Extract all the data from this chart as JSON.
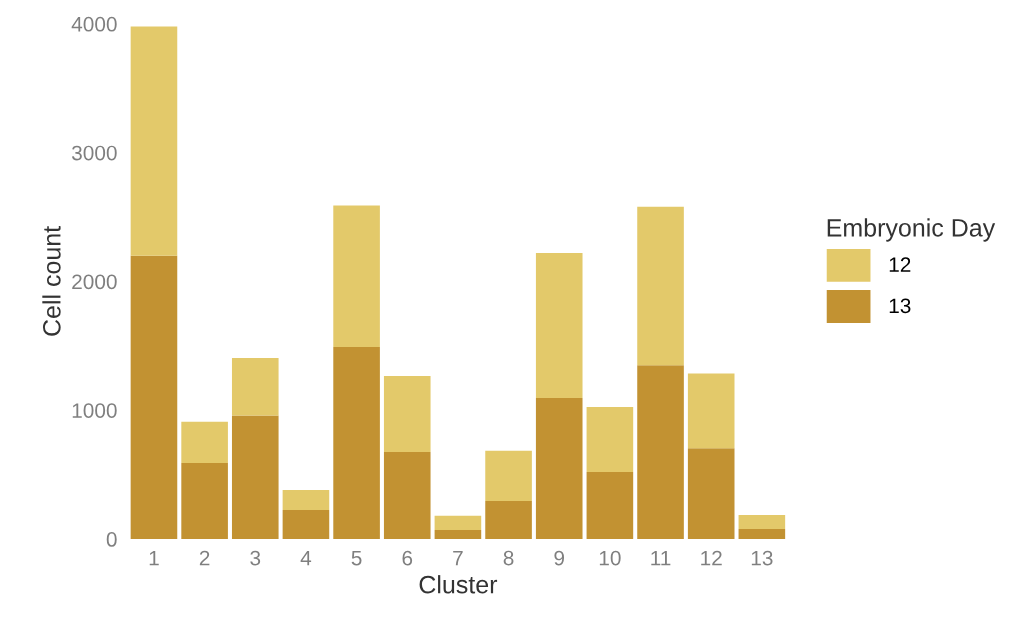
{
  "chart_data": {
    "type": "bar",
    "stacked": true,
    "xlabel": "Cluster",
    "ylabel": "Cell count",
    "legend_title": "Embryonic Day",
    "legend": "right",
    "categories": [
      "1",
      "2",
      "3",
      "4",
      "5",
      "6",
      "7",
      "8",
      "9",
      "10",
      "11",
      "12",
      "13"
    ],
    "series": [
      {
        "name": "13",
        "color": "#c29232",
        "values": [
          2200,
          590,
          960,
          225,
          1490,
          675,
          70,
          295,
          1095,
          520,
          1350,
          705,
          78
        ]
      },
      {
        "name": "12",
        "color": "#e3c96a",
        "values": [
          1780,
          320,
          445,
          155,
          1100,
          590,
          110,
          390,
          1125,
          505,
          1230,
          580,
          108
        ]
      }
    ],
    "ylim": [
      0,
      4000
    ],
    "yticks": [
      0,
      1000,
      2000,
      3000,
      4000
    ],
    "grid": false
  }
}
